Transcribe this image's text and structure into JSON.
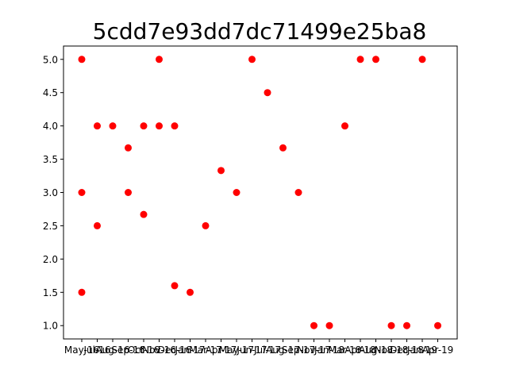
{
  "chart_data": {
    "type": "scatter",
    "title": "5cdd7e93dd7dc71499e25ba8",
    "xlabel": "",
    "ylabel": "",
    "x_ticks": [
      "May-16",
      "Jul-16",
      "Aug-16",
      "Sep-16",
      "Oct-16",
      "Nov-16",
      "Dec-16",
      "Jan-17",
      "Mar-17",
      "Apr-17",
      "May-17",
      "Jun-17",
      "Jul-17",
      "Aug-17",
      "Sep-17",
      "Nov-17",
      "Jan-18",
      "Mar-18",
      "Apr-18",
      "Aug-18",
      "Nov-18",
      "Dec-18",
      "Jan-19",
      "Apr-19"
    ],
    "y_ticks": [
      1.0,
      1.5,
      2.0,
      2.5,
      3.0,
      3.5,
      4.0,
      4.5,
      5.0
    ],
    "ylim": [
      0.8,
      5.2
    ],
    "grid": false,
    "marker_color": "#ff0000",
    "points": [
      {
        "x": "May-16",
        "y": 5.0
      },
      {
        "x": "May-16",
        "y": 3.0
      },
      {
        "x": "May-16",
        "y": 1.5
      },
      {
        "x": "Jul-16",
        "y": 4.0
      },
      {
        "x": "Jul-16",
        "y": 2.5
      },
      {
        "x": "Aug-16",
        "y": 4.0
      },
      {
        "x": "Sep-16",
        "y": 3.67
      },
      {
        "x": "Sep-16",
        "y": 3.0
      },
      {
        "x": "Oct-16",
        "y": 4.0
      },
      {
        "x": "Oct-16",
        "y": 2.67
      },
      {
        "x": "Nov-16",
        "y": 5.0
      },
      {
        "x": "Nov-16",
        "y": 4.0
      },
      {
        "x": "Dec-16",
        "y": 4.0
      },
      {
        "x": "Dec-16",
        "y": 1.6
      },
      {
        "x": "Jan-17",
        "y": 1.5
      },
      {
        "x": "Mar-17",
        "y": 2.5
      },
      {
        "x": "Apr-17",
        "y": 3.33
      },
      {
        "x": "May-17",
        "y": 3.0
      },
      {
        "x": "Jun-17",
        "y": 5.0
      },
      {
        "x": "Jul-17",
        "y": 4.5
      },
      {
        "x": "Aug-17",
        "y": 3.67
      },
      {
        "x": "Sep-17",
        "y": 3.0
      },
      {
        "x": "Nov-17",
        "y": 1.0
      },
      {
        "x": "Jan-18",
        "y": 1.0
      },
      {
        "x": "Mar-18",
        "y": 4.0
      },
      {
        "x": "Apr-18",
        "y": 5.0
      },
      {
        "x": "Aug-18",
        "y": 5.0
      },
      {
        "x": "Nov-18",
        "y": 1.0
      },
      {
        "x": "Dec-18",
        "y": 1.0
      },
      {
        "x": "Jan-19",
        "y": 5.0
      },
      {
        "x": "Apr-19",
        "y": 1.0
      }
    ]
  }
}
